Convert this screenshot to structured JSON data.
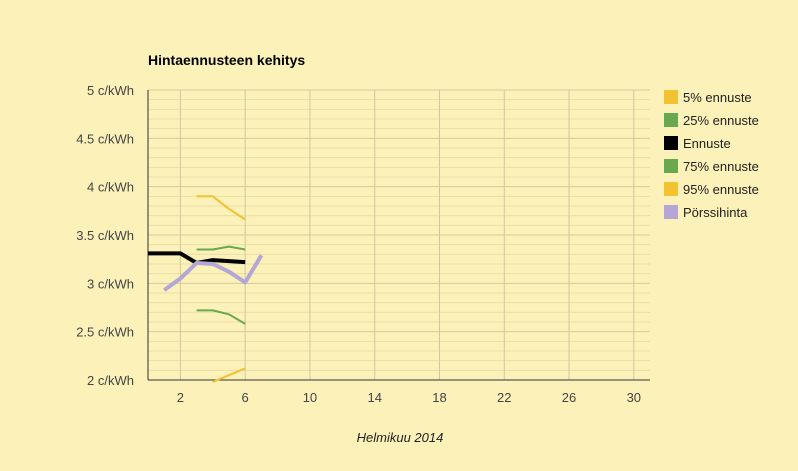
{
  "chart_data": {
    "type": "line",
    "title": "Hintaennusteen kehitys",
    "xlabel": "Helmikuu 2014",
    "ylabel": "",
    "xlim": [
      0,
      31
    ],
    "ylim": [
      2,
      5
    ],
    "x_ticks": [
      2,
      6,
      10,
      14,
      18,
      22,
      26,
      30
    ],
    "y_ticks": [
      {
        "value": 2,
        "label": "2 c/kWh"
      },
      {
        "value": 2.5,
        "label": "2.5 c/kWh"
      },
      {
        "value": 3,
        "label": "3 c/kWh"
      },
      {
        "value": 3.5,
        "label": "3.5 c/kWh"
      },
      {
        "value": 4,
        "label": "4 c/kWh"
      },
      {
        "value": 4.5,
        "label": "4.5 c/kWh"
      },
      {
        "value": 5,
        "label": "5 c/kWh"
      }
    ],
    "grid": true,
    "legend_position": "right",
    "series": [
      {
        "name": "5% ennuste",
        "color": "#f1c232",
        "width": 2,
        "points": [
          [
            4,
            1.98
          ],
          [
            5,
            2.05
          ],
          [
            6,
            2.12
          ]
        ]
      },
      {
        "name": "25% ennuste",
        "color": "#6aa84f",
        "width": 2,
        "points": [
          [
            3,
            2.72
          ],
          [
            4,
            2.72
          ],
          [
            5,
            2.68
          ],
          [
            6,
            2.58
          ]
        ]
      },
      {
        "name": "Ennuste",
        "color": "#000000",
        "width": 4,
        "points": [
          [
            0,
            3.31
          ],
          [
            1,
            3.31
          ],
          [
            2,
            3.31
          ],
          [
            3,
            3.21
          ],
          [
            4,
            3.24
          ],
          [
            5,
            3.23
          ],
          [
            6,
            3.22
          ]
        ]
      },
      {
        "name": "75% ennuste",
        "color": "#6aa84f",
        "width": 2,
        "points": [
          [
            3,
            3.35
          ],
          [
            4,
            3.35
          ],
          [
            5,
            3.38
          ],
          [
            6,
            3.35
          ]
        ]
      },
      {
        "name": "95% ennuste",
        "color": "#f1c232",
        "width": 2,
        "points": [
          [
            3,
            3.9
          ],
          [
            4,
            3.9
          ],
          [
            5,
            3.77
          ],
          [
            6,
            3.66
          ]
        ]
      },
      {
        "name": "Pörssihinta",
        "color": "#b4a7d6",
        "width": 4,
        "points": [
          [
            1,
            2.93
          ],
          [
            2,
            3.05
          ],
          [
            3,
            3.21
          ],
          [
            4,
            3.2
          ],
          [
            5,
            3.12
          ],
          [
            6,
            3.01
          ],
          [
            7,
            3.29
          ]
        ]
      }
    ]
  }
}
